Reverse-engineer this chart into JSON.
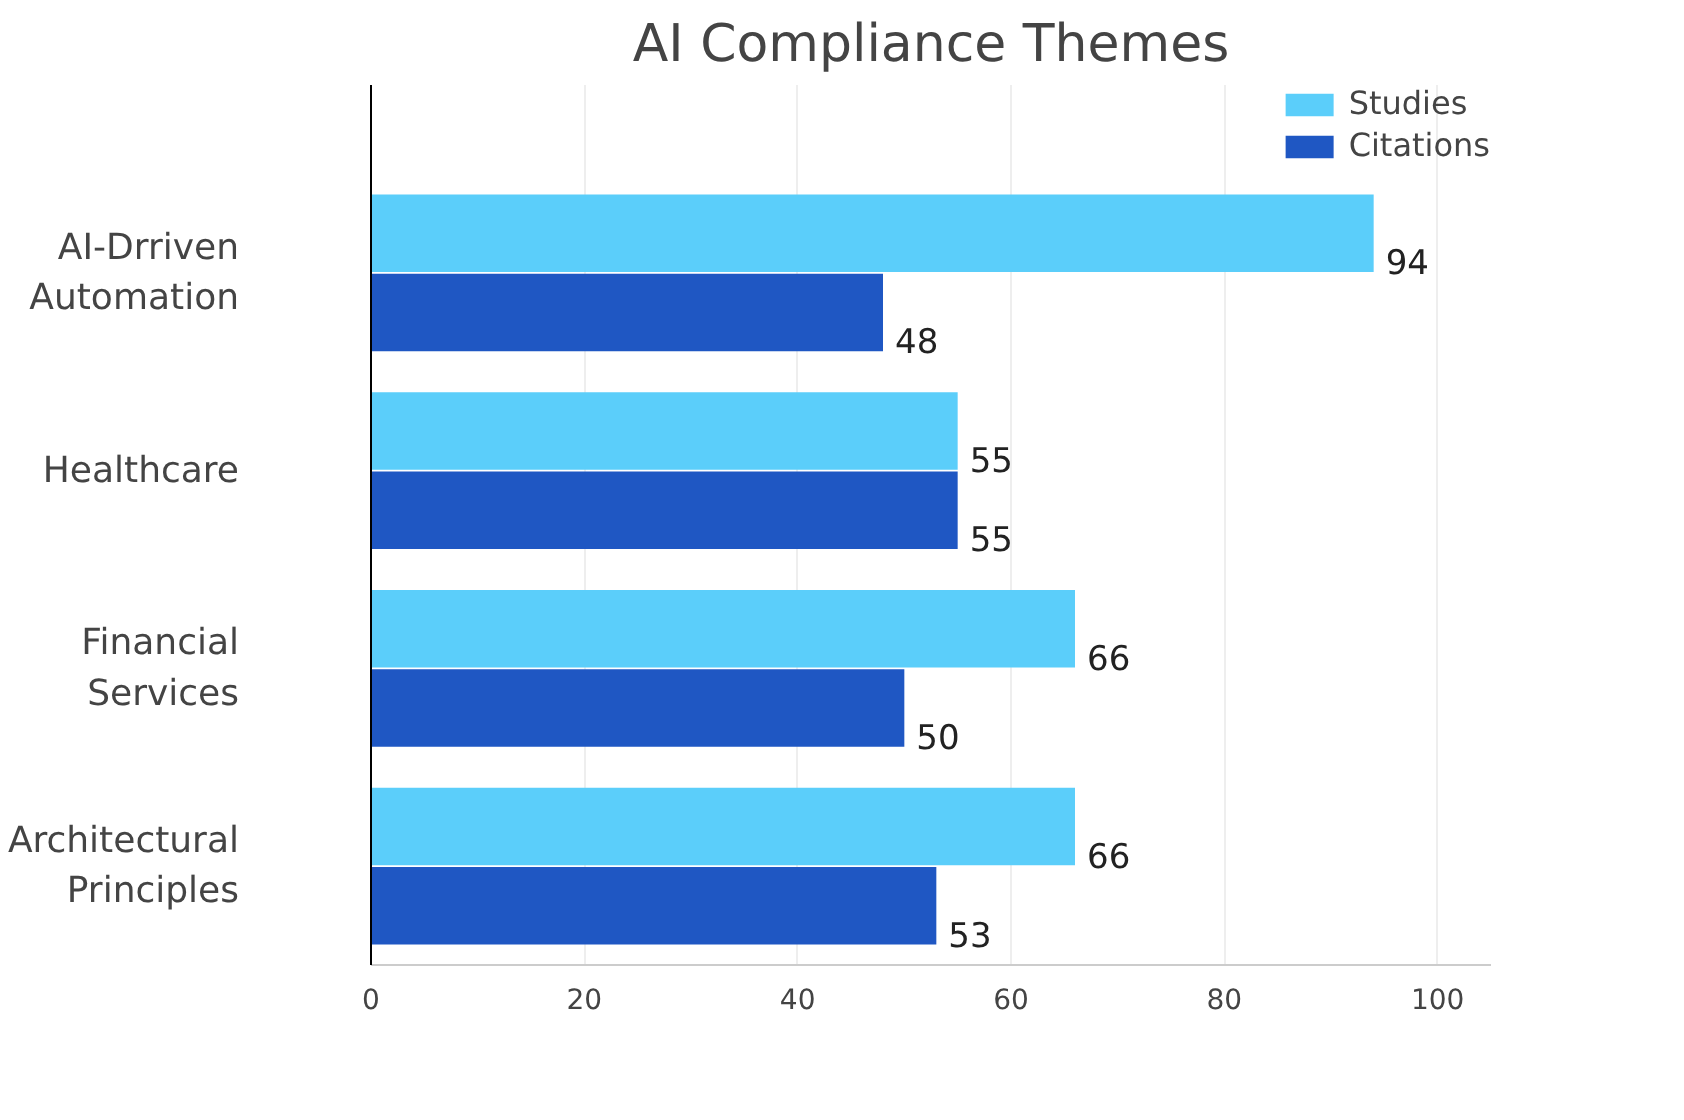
{
  "chart_data": {
    "type": "bar",
    "orientation": "horizontal",
    "title": "AI Compliance Themes",
    "categories": [
      "AI-Drriven\nAutomation",
      "Healthcare",
      "Financial\nServices",
      "Architectural\nPrinciples"
    ],
    "series": [
      {
        "name": "Studies",
        "color": "#5bcefa",
        "values": [
          94,
          55,
          66,
          66
        ]
      },
      {
        "name": "Citations",
        "color": "#1f57c3",
        "values": [
          48,
          55,
          50,
          53
        ]
      }
    ],
    "data_labels": true,
    "xlim": [
      0,
      105
    ],
    "xticks": [
      0,
      20,
      40,
      60,
      80,
      100
    ],
    "grid": "x",
    "legend": "top right"
  }
}
